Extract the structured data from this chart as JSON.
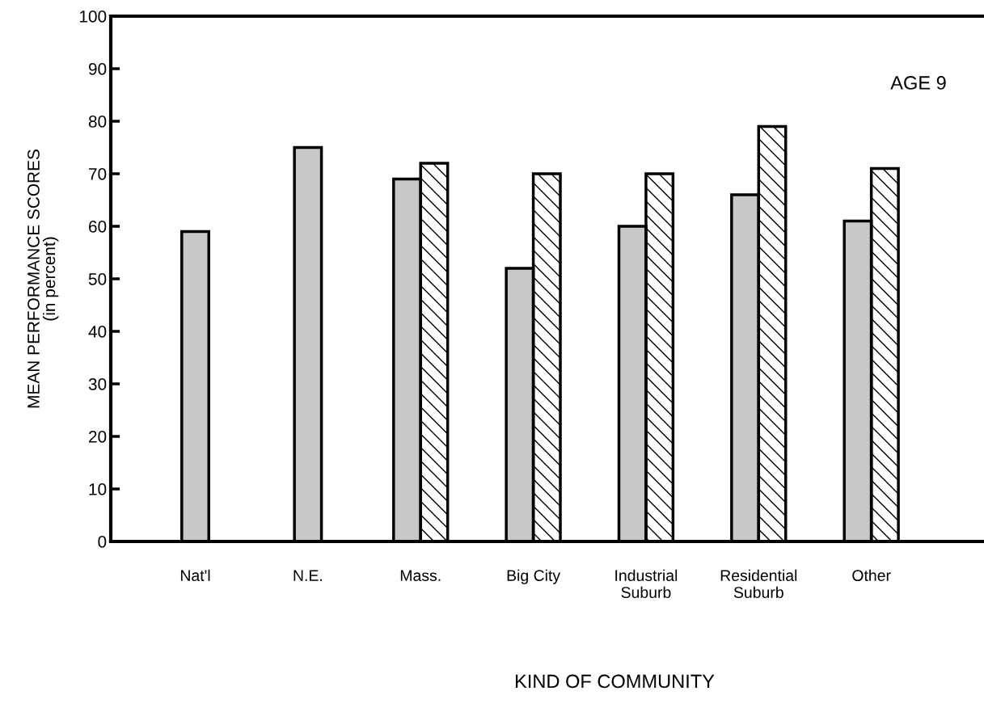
{
  "chart_data": {
    "type": "bar",
    "xlabel": "KIND OF COMMUNITY",
    "ylabel": "MEAN PERFORMANCE SCORES\n(in percent)",
    "categories": [
      "Nat'l",
      "N.E.",
      "Mass.",
      "Big City",
      "Industrial\nSuburb",
      "Residential\nSuburb",
      "Other"
    ],
    "series": [
      {
        "color": "#c8c8c8",
        "values": [
          59,
          75,
          69,
          52,
          60,
          66,
          61
        ]
      },
      {
        "color": "#000000",
        "values": [
          null,
          null,
          72,
          70,
          70,
          79,
          71
        ]
      }
    ],
    "ylim": [
      0,
      100
    ],
    "yticks": [
      0,
      10,
      20,
      30,
      40,
      50,
      60,
      70,
      80,
      90,
      100
    ],
    "annotations": [
      "AGE 9"
    ],
    "grid": false,
    "legend": false
  }
}
